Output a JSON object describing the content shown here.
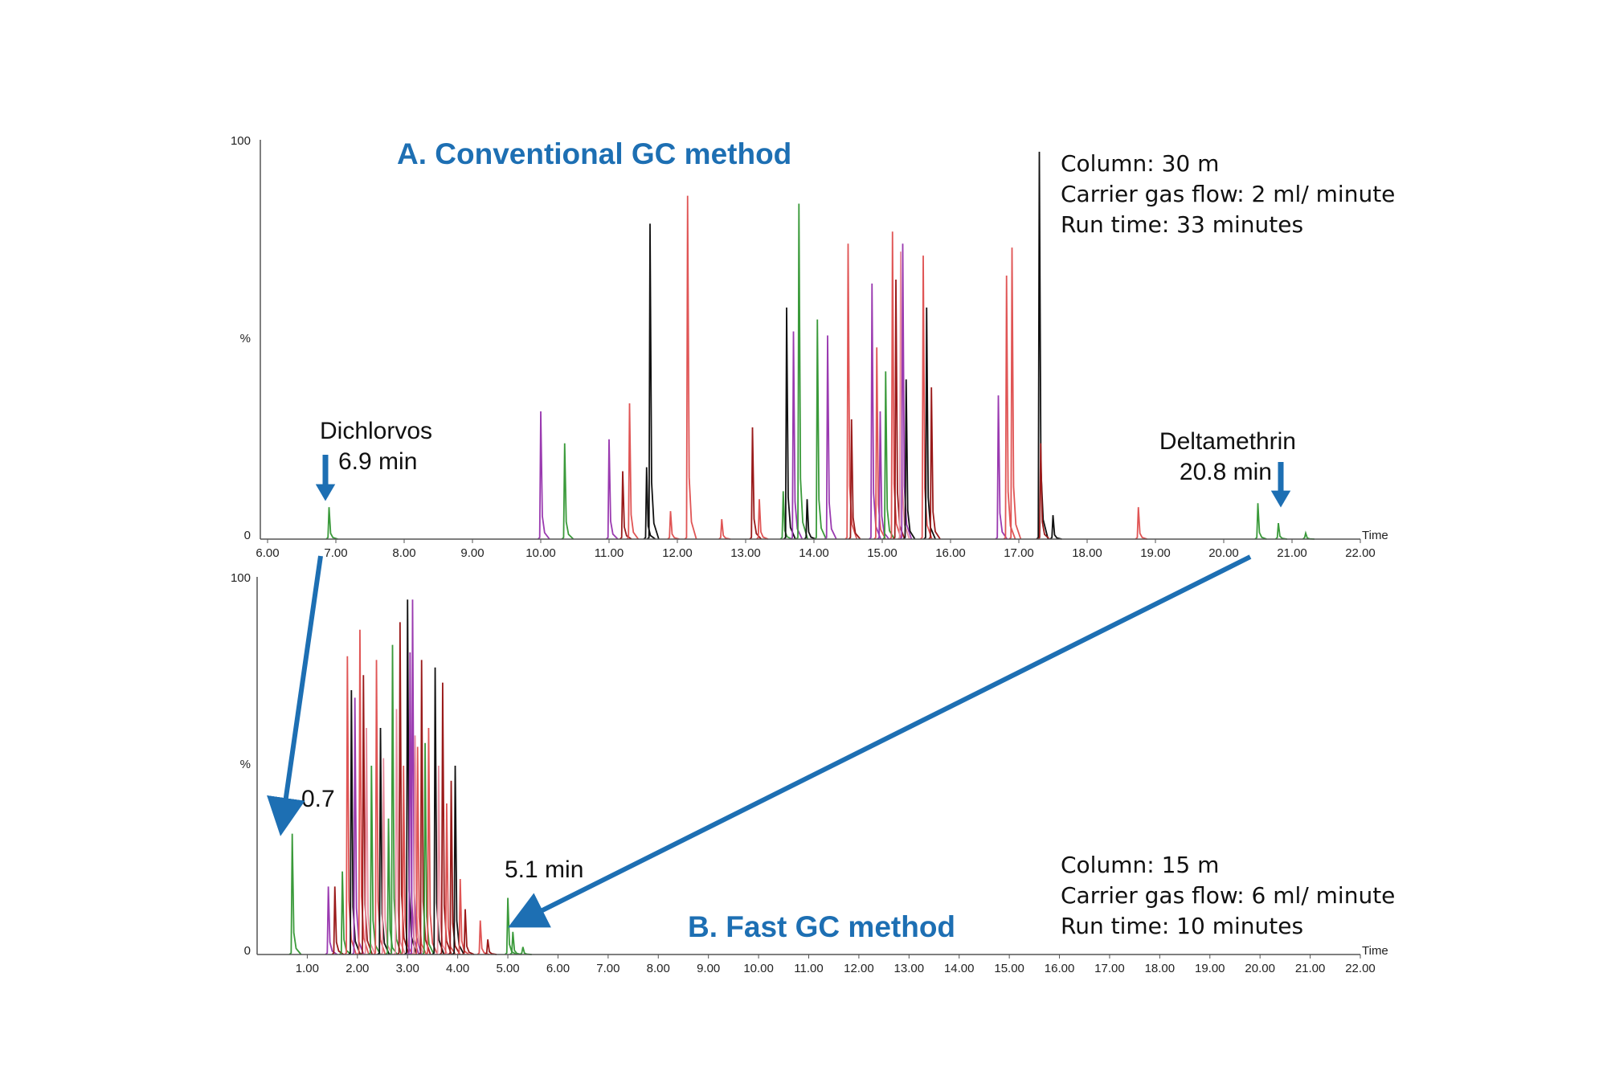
{
  "colors": {
    "accent": "#1d6fb3",
    "series": [
      "#9a3ab0",
      "#3a9a3a",
      "#e05555",
      "#111111",
      "#9a1a1a",
      "#e890a0"
    ]
  },
  "chart_data": [
    {
      "type": "line",
      "title": "A. Conventional GC method",
      "xlabel": "Time",
      "ylabel": "%",
      "xlim": [
        6.0,
        22.0
      ],
      "ylim": [
        0,
        100
      ],
      "x_ticks": [
        "6.00",
        "7.00",
        "8.00",
        "9.00",
        "10.00",
        "11.00",
        "12.00",
        "13.00",
        "14.00",
        "15.00",
        "16.00",
        "17.00",
        "18.00",
        "19.00",
        "20.00",
        "21.00",
        "22.00"
      ],
      "y_ticks": [
        "0",
        "%",
        "100"
      ],
      "info": [
        "Column: 30 m",
        "Carrier gas flow: 2 ml/ minute",
        "Run time: 33 minutes"
      ],
      "annotations": [
        {
          "label": "Dichlorvos",
          "value": "6.9 min",
          "x": 6.9
        },
        {
          "label": "Deltamethrin",
          "value": "20.8 min",
          "x": 20.8
        }
      ],
      "peaks": [
        {
          "x": 6.9,
          "y": 8,
          "c": 1
        },
        {
          "x": 10.0,
          "y": 32,
          "c": 0
        },
        {
          "x": 10.35,
          "y": 24,
          "c": 1
        },
        {
          "x": 11.0,
          "y": 25,
          "c": 0
        },
        {
          "x": 11.2,
          "y": 17,
          "c": 4
        },
        {
          "x": 11.3,
          "y": 34,
          "c": 2
        },
        {
          "x": 11.55,
          "y": 18,
          "c": 3
        },
        {
          "x": 11.6,
          "y": 79,
          "c": 3
        },
        {
          "x": 11.9,
          "y": 7,
          "c": 2
        },
        {
          "x": 12.15,
          "y": 86,
          "c": 2
        },
        {
          "x": 12.65,
          "y": 5,
          "c": 2
        },
        {
          "x": 13.1,
          "y": 28,
          "c": 4
        },
        {
          "x": 13.2,
          "y": 10,
          "c": 2
        },
        {
          "x": 13.55,
          "y": 12,
          "c": 1
        },
        {
          "x": 13.6,
          "y": 58,
          "c": 3
        },
        {
          "x": 13.7,
          "y": 52,
          "c": 0
        },
        {
          "x": 13.78,
          "y": 84,
          "c": 1
        },
        {
          "x": 13.9,
          "y": 10,
          "c": 3
        },
        {
          "x": 14.05,
          "y": 55,
          "c": 1
        },
        {
          "x": 14.2,
          "y": 51,
          "c": 0
        },
        {
          "x": 14.5,
          "y": 74,
          "c": 2
        },
        {
          "x": 14.55,
          "y": 30,
          "c": 4
        },
        {
          "x": 14.85,
          "y": 64,
          "c": 0
        },
        {
          "x": 14.92,
          "y": 48,
          "c": 2
        },
        {
          "x": 14.97,
          "y": 32,
          "c": 0
        },
        {
          "x": 15.05,
          "y": 42,
          "c": 1
        },
        {
          "x": 15.15,
          "y": 77,
          "c": 2
        },
        {
          "x": 15.2,
          "y": 65,
          "c": 4
        },
        {
          "x": 15.27,
          "y": 72,
          "c": 5
        },
        {
          "x": 15.3,
          "y": 74,
          "c": 0
        },
        {
          "x": 15.35,
          "y": 40,
          "c": 3
        },
        {
          "x": 15.6,
          "y": 71,
          "c": 2
        },
        {
          "x": 15.65,
          "y": 58,
          "c": 3
        },
        {
          "x": 15.72,
          "y": 38,
          "c": 4
        },
        {
          "x": 16.7,
          "y": 36,
          "c": 0
        },
        {
          "x": 16.82,
          "y": 66,
          "c": 2
        },
        {
          "x": 16.9,
          "y": 73,
          "c": 2
        },
        {
          "x": 17.3,
          "y": 97,
          "c": 3
        },
        {
          "x": 17.32,
          "y": 24,
          "c": 4
        },
        {
          "x": 17.5,
          "y": 6,
          "c": 3
        },
        {
          "x": 18.75,
          "y": 8,
          "c": 2
        },
        {
          "x": 20.5,
          "y": 9,
          "c": 1
        },
        {
          "x": 20.8,
          "y": 4,
          "c": 1
        },
        {
          "x": 21.2,
          "y": 1.5,
          "c": 1
        }
      ]
    },
    {
      "type": "line",
      "title": "B. Fast GC method",
      "xlabel": "Time",
      "ylabel": "%",
      "xlim": [
        0.0,
        22.0
      ],
      "ylim": [
        0,
        100
      ],
      "x_ticks": [
        "1.00",
        "2.00",
        "3.00",
        "4.00",
        "5.00",
        "6.00",
        "7.00",
        "8.00",
        "9.00",
        "10.00",
        "11.00",
        "12.00",
        "13.00",
        "14.00",
        "15.00",
        "16.00",
        "17.00",
        "18.00",
        "19.00",
        "20.00",
        "21.00",
        "22.00"
      ],
      "y_ticks": [
        "0",
        "%",
        "100"
      ],
      "info": [
        "Column: 15 m",
        "Carrier gas flow: 6 ml/ minute",
        "Run time: 10 minutes"
      ],
      "annotations": [
        {
          "label": "",
          "value": "0.7",
          "x": 0.7
        },
        {
          "label": "",
          "value": "5.1 min",
          "x": 5.1
        }
      ],
      "peaks": [
        {
          "x": 0.7,
          "y": 32,
          "c": 1
        },
        {
          "x": 1.42,
          "y": 18,
          "c": 0
        },
        {
          "x": 1.55,
          "y": 18,
          "c": 4
        },
        {
          "x": 1.7,
          "y": 22,
          "c": 1
        },
        {
          "x": 1.8,
          "y": 79,
          "c": 2
        },
        {
          "x": 1.88,
          "y": 70,
          "c": 3
        },
        {
          "x": 1.95,
          "y": 68,
          "c": 0
        },
        {
          "x": 2.05,
          "y": 86,
          "c": 2
        },
        {
          "x": 2.12,
          "y": 74,
          "c": 4
        },
        {
          "x": 2.18,
          "y": 60,
          "c": 5
        },
        {
          "x": 2.28,
          "y": 50,
          "c": 1
        },
        {
          "x": 2.38,
          "y": 78,
          "c": 2
        },
        {
          "x": 2.46,
          "y": 60,
          "c": 3
        },
        {
          "x": 2.52,
          "y": 52,
          "c": 5
        },
        {
          "x": 2.62,
          "y": 36,
          "c": 1
        },
        {
          "x": 2.7,
          "y": 82,
          "c": 1
        },
        {
          "x": 2.78,
          "y": 65,
          "c": 5
        },
        {
          "x": 2.85,
          "y": 88,
          "c": 4
        },
        {
          "x": 2.92,
          "y": 50,
          "c": 2
        },
        {
          "x": 3.0,
          "y": 94,
          "c": 3
        },
        {
          "x": 3.05,
          "y": 80,
          "c": 0
        },
        {
          "x": 3.1,
          "y": 94,
          "c": 0
        },
        {
          "x": 3.15,
          "y": 58,
          "c": 5
        },
        {
          "x": 3.2,
          "y": 55,
          "c": 2
        },
        {
          "x": 3.28,
          "y": 78,
          "c": 4
        },
        {
          "x": 3.35,
          "y": 56,
          "c": 1
        },
        {
          "x": 3.42,
          "y": 60,
          "c": 2
        },
        {
          "x": 3.55,
          "y": 76,
          "c": 3
        },
        {
          "x": 3.62,
          "y": 50,
          "c": 5
        },
        {
          "x": 3.7,
          "y": 72,
          "c": 4
        },
        {
          "x": 3.78,
          "y": 40,
          "c": 2
        },
        {
          "x": 3.87,
          "y": 46,
          "c": 4
        },
        {
          "x": 3.95,
          "y": 50,
          "c": 3
        },
        {
          "x": 4.05,
          "y": 20,
          "c": 2
        },
        {
          "x": 4.15,
          "y": 12,
          "c": 4
        },
        {
          "x": 4.45,
          "y": 9,
          "c": 2
        },
        {
          "x": 4.6,
          "y": 4,
          "c": 4
        },
        {
          "x": 5.0,
          "y": 15,
          "c": 1
        },
        {
          "x": 5.1,
          "y": 6,
          "c": 1
        },
        {
          "x": 5.3,
          "y": 2,
          "c": 1
        }
      ]
    }
  ]
}
